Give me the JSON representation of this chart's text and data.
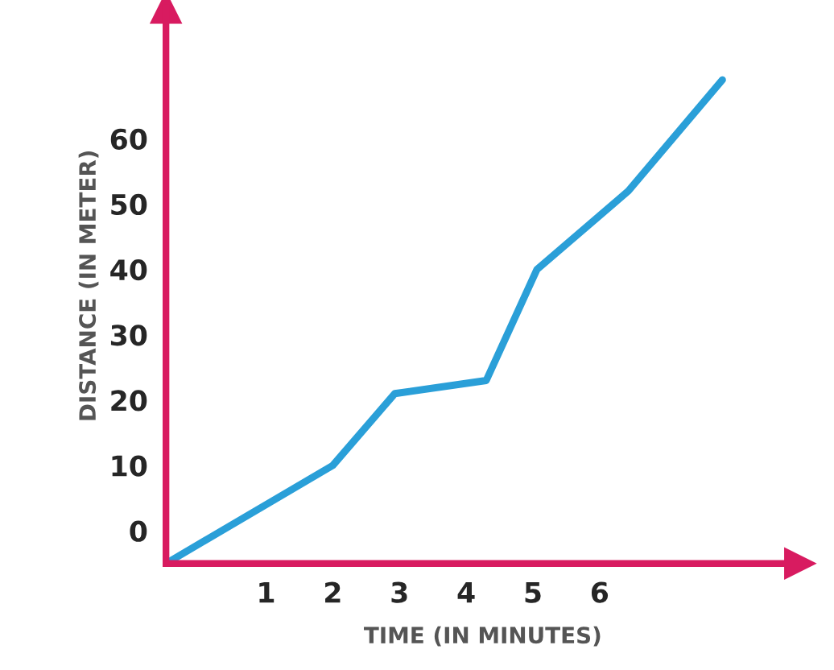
{
  "chart_data": {
    "type": "line",
    "xlabel": "TIME (IN MINUTES)",
    "ylabel": "DISTANCE (IN METER)",
    "x": [
      -0.5,
      2.0,
      2.93,
      4.3,
      5.06,
      6.43,
      7.84
    ],
    "series": [
      {
        "color": "#2a9fd8",
        "values": [
          -5,
          10,
          21,
          23,
          40,
          52,
          69
        ]
      }
    ],
    "xlim": [
      -0.5,
      9.0
    ],
    "ylim": [
      -5,
      80
    ],
    "xticks": [
      1,
      2,
      3,
      4,
      5,
      6
    ],
    "yticks": [
      0,
      10,
      20,
      30,
      40,
      50,
      60
    ],
    "grid": false,
    "legend": false,
    "marker": "none",
    "line_style": "solid"
  }
}
